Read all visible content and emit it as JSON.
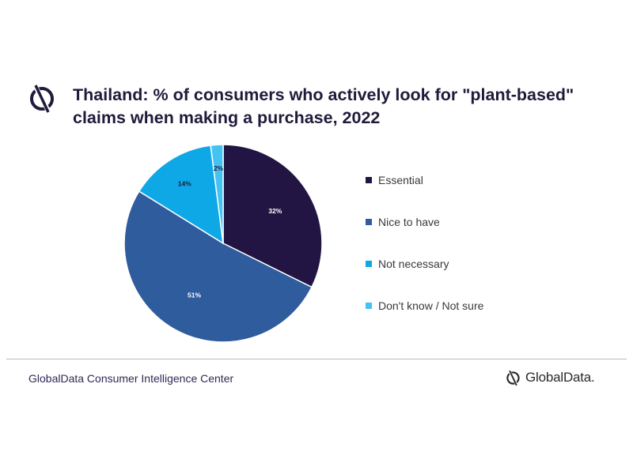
{
  "title": "Thailand: % of consumers who actively look for \"plant-based\" claims when making a purchase, 2022",
  "footer_source": "GlobalData Consumer Intelligence Center",
  "brand_name": "GlobalData.",
  "icons": {
    "title": "globaldata-logo-icon",
    "brand": "globaldata-logo-icon"
  },
  "colors": {
    "accent_dark": "#1f1b3a",
    "divider": "#bcbcbc"
  },
  "chart_data": {
    "type": "pie",
    "title": "Thailand: % of consumers who actively look for \"plant-based\" claims when making a purchase, 2022",
    "categories": [
      "Essential",
      "Nice to have",
      "Not necessary",
      "Don't know / Not sure"
    ],
    "values": [
      32,
      51,
      14,
      2
    ],
    "data_labels": [
      "32%",
      "51%",
      "14%",
      "2%"
    ],
    "colors": [
      "#231543",
      "#2f5c9d",
      "#0fa8e6",
      "#42c3f1"
    ],
    "legend_position": "right",
    "start_angle": "12 o'clock",
    "direction": "clockwise"
  }
}
